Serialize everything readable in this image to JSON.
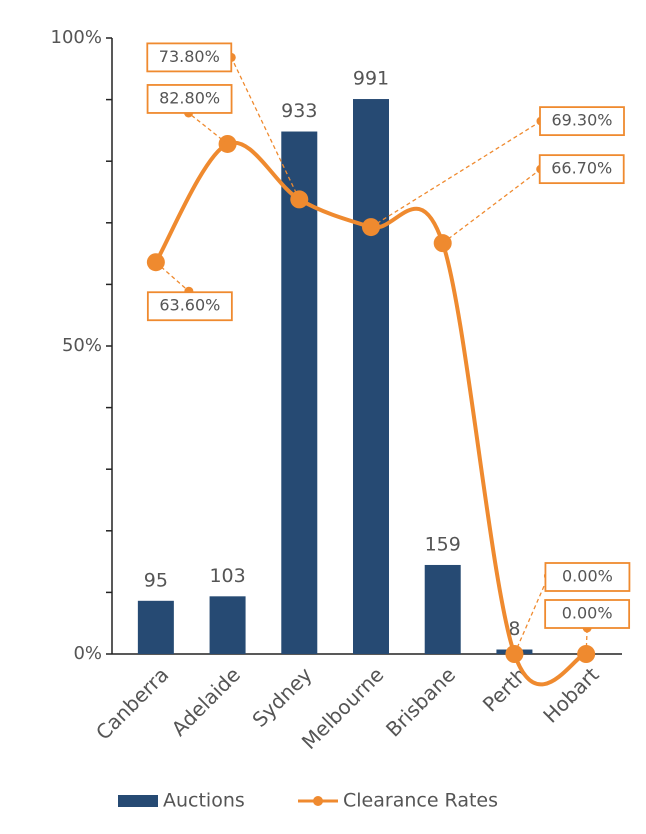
{
  "chart_data": {
    "type": "bar-line",
    "categories": [
      "Canberra",
      "Adelaide",
      "Sydney",
      "Melbourne",
      "Brisbane",
      "Perth",
      "Hobart"
    ],
    "series": [
      {
        "name": "Auctions",
        "type": "bar",
        "axis": "y2",
        "color": "#264a73",
        "values": [
          95,
          103,
          933,
          991,
          159,
          8,
          null
        ]
      },
      {
        "name": "Clearance Rates",
        "type": "line",
        "color": "#ef8a2f",
        "values": [
          63.6,
          82.8,
          73.8,
          69.3,
          66.7,
          0,
          0
        ],
        "value_labels": [
          "63.60%",
          "82.80%",
          "73.80%",
          "69.30%",
          "66.70%",
          "0.00%",
          "0.00%"
        ]
      }
    ],
    "ylim": [
      0,
      100
    ],
    "yticks": [
      {
        "value": 0,
        "label": "0%"
      },
      {
        "value": 50,
        "label": "50%"
      },
      {
        "value": 100,
        "label": "100%"
      }
    ],
    "yminor_ticks": [
      10,
      20,
      30,
      40,
      60,
      70,
      80,
      90
    ],
    "y2lim": [
      0,
      1100
    ],
    "legend": "bottom"
  }
}
